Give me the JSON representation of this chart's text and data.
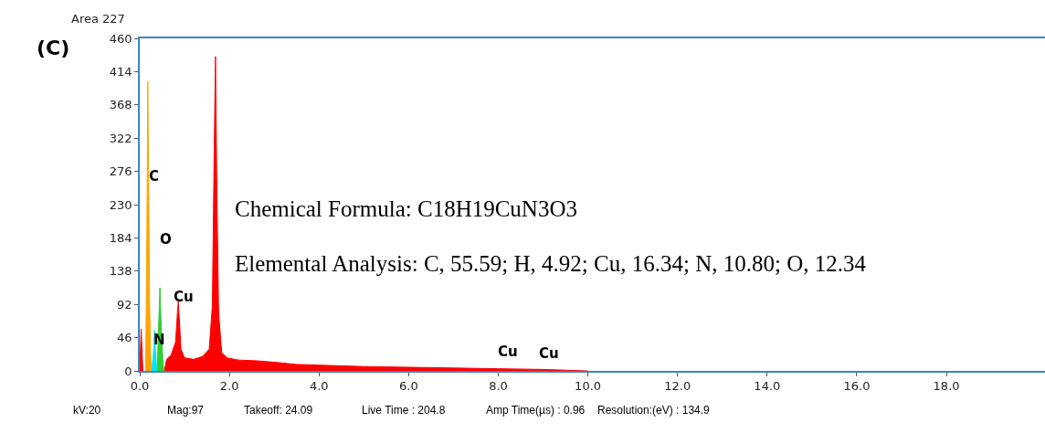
{
  "chart_data": {
    "type": "area",
    "title": "Area 227",
    "series": [
      {
        "color": "#ff0000",
        "x": [
          0.0,
          0.03,
          0.07
        ],
        "values": [
          0,
          58,
          0
        ]
      },
      {
        "color": "#ff0000",
        "x": [
          0.55,
          0.6,
          0.7,
          0.8,
          0.84,
          0.86,
          0.88,
          0.92,
          1.0,
          1.2,
          1.4,
          1.55,
          1.62,
          1.66,
          1.69,
          1.72,
          1.76,
          1.83,
          1.95,
          2.2,
          2.6,
          3.0,
          3.5,
          4.0,
          5.0,
          6.0,
          7.0,
          8.0,
          9.0,
          9.5,
          10.0
        ],
        "values": [
          0,
          16,
          22,
          40,
          80,
          96,
          75,
          30,
          18,
          16,
          20,
          30,
          90,
          300,
          435,
          250,
          80,
          25,
          18,
          15,
          14,
          12,
          9,
          8,
          6,
          5,
          4,
          3,
          2,
          1,
          0
        ]
      },
      {
        "color": "#ffa500",
        "x": [
          0.13,
          0.15,
          0.17,
          0.18,
          0.2,
          0.22,
          0.24,
          0.26
        ],
        "values": [
          0,
          120,
          290,
          400,
          250,
          90,
          30,
          0
        ]
      },
      {
        "color": "#00e5ff",
        "x": [
          0.27,
          0.31,
          0.33,
          0.35,
          0.38
        ],
        "values": [
          0,
          30,
          56,
          30,
          0
        ]
      },
      {
        "color": "#33cc33",
        "x": [
          0.39,
          0.42,
          0.45,
          0.48,
          0.52,
          0.54
        ],
        "values": [
          0,
          60,
          115,
          60,
          10,
          0
        ]
      }
    ],
    "xlim": [
      0,
      20.2
    ],
    "ylim": [
      0,
      460
    ],
    "xticks": [
      {
        "value": 0,
        "label": "0.0"
      },
      {
        "value": 2,
        "label": "2.0"
      },
      {
        "value": 4,
        "label": "4.0"
      },
      {
        "value": 6,
        "label": "6.0"
      },
      {
        "value": 8,
        "label": "8.0"
      },
      {
        "value": 10,
        "label": "10.0"
      },
      {
        "value": 12,
        "label": "12.0"
      },
      {
        "value": 14,
        "label": "14.0"
      },
      {
        "value": 16,
        "label": "16.0"
      },
      {
        "value": 18,
        "label": "18.0"
      }
    ],
    "yticks": [
      0,
      46,
      92,
      138,
      184,
      230,
      276,
      322,
      368,
      414,
      460
    ],
    "annotations": [
      "C",
      "O",
      "N",
      "Cu",
      "Cu",
      "Cu",
      "Chemical Formula: C18H19CuN3O3",
      "Elemental Analysis: C, 55.59; H, 4.92; Cu, 16.34; N, 10.80; O, 12.34",
      "(C)",
      "kV:20",
      "Mag:97",
      "Takeoff: 24.09",
      "Live Time : 204.8",
      "Amp Time(µs) : 0.96",
      "Resolution:(eV) : 134.9"
    ]
  }
}
